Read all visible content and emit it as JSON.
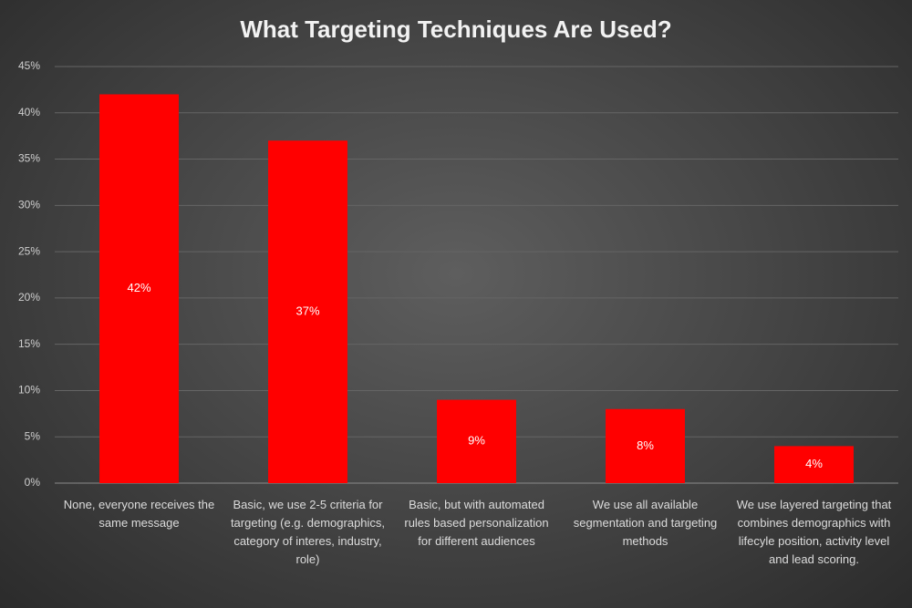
{
  "chart_data": {
    "type": "bar",
    "title": "What Targeting Techniques Are Used?",
    "categories": [
      "None, everyone receives the same message",
      "Basic, we use 2-5 criteria for targeting (e.g. demographics, category of interes, industry, role)",
      "Basic, but with automated rules based personalization for different audiences",
      "We use all available segmentation and targeting methods",
      "We use layered targeting that combines demographics with lifecyle position, activity level and lead scoring."
    ],
    "values": [
      42,
      37,
      9,
      8,
      4
    ],
    "value_labels": [
      "42%",
      "37%",
      "9%",
      "8%",
      "4%"
    ],
    "color": "#ff0000",
    "ylim": [
      0,
      45
    ],
    "yticks": [
      {
        "value": 0,
        "label": "0%"
      },
      {
        "value": 5,
        "label": "5%"
      },
      {
        "value": 10,
        "label": "10%"
      },
      {
        "value": 15,
        "label": "15%"
      },
      {
        "value": 20,
        "label": "20%"
      },
      {
        "value": 25,
        "label": "25%"
      },
      {
        "value": 30,
        "label": "30%"
      },
      {
        "value": 35,
        "label": "35%"
      },
      {
        "value": 40,
        "label": "40%"
      },
      {
        "value": 45,
        "label": "45%"
      }
    ],
    "grid": true
  }
}
